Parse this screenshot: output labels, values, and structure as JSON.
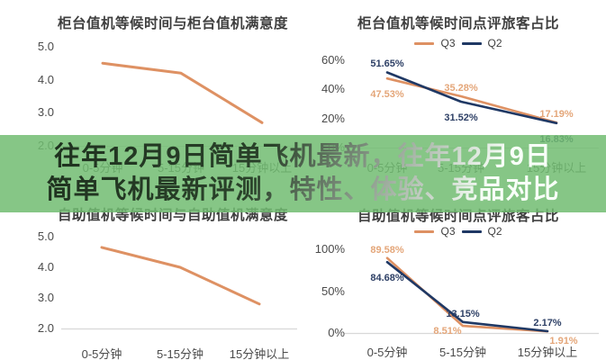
{
  "banner": {
    "lines": [
      "往年12月9日简单飞机最新，往年12月9日",
      "简单飞机最新评测，特性、体验、竞品对比"
    ],
    "overlay_color": "#71bc71",
    "text_dark_color": "#243624",
    "text_light_color": "#f8fff8"
  },
  "colors": {
    "background": "#ffffff",
    "q3_orange": "#de9163",
    "q2_navy": "#1f3864",
    "orange_label": "#e4a679",
    "navy_label": "#2e4066",
    "title_text": "#3f3f3f",
    "axis_text": "#4a4a4a",
    "baseline": "#d8d8d8"
  },
  "chart_data": [
    {
      "type": "line",
      "title": "柜台值机等候时间与柜台值机满意度",
      "categories": [
        "0-5分钟",
        "5-15分钟",
        "15分钟以上"
      ],
      "yticks": [
        "5.0",
        "4.0",
        "3.0",
        "2.0"
      ],
      "ylim": [
        2.0,
        5.0
      ],
      "grid": false,
      "legend_position": "none",
      "series": [
        {
          "color": "#de9163",
          "values": [
            4.5,
            4.2,
            2.7
          ],
          "data_labels": false
        }
      ]
    },
    {
      "type": "line",
      "title": "柜台值机等候时间点评旅客占比",
      "categories": [
        "0-5分钟",
        "5-15分钟",
        "15分钟以上"
      ],
      "yticks": [
        "60%",
        "40%",
        "20%",
        "0%"
      ],
      "ylim": [
        0,
        60
      ],
      "grid": false,
      "legend_position": "top",
      "series": [
        {
          "name": "Q3",
          "color": "#de9163",
          "label_color": "#e4a679",
          "values": [
            47.53,
            35.28,
            17.19
          ],
          "data_labels": true
        },
        {
          "name": "Q2",
          "color": "#1f3864",
          "label_color": "#2e4066",
          "values": [
            51.65,
            31.52,
            16.83
          ],
          "data_labels": true
        }
      ]
    },
    {
      "type": "line",
      "title": "自助值机等候时间与自助值机满意度",
      "categories": [
        "0-5分钟",
        "5-15分钟",
        "15分钟以上"
      ],
      "yticks": [
        "5.0",
        "4.0",
        "3.0",
        "2.0"
      ],
      "ylim": [
        2.0,
        5.0
      ],
      "grid": false,
      "legend_position": "none",
      "series": [
        {
          "color": "#de9163",
          "values": [
            4.65,
            4.0,
            2.8
          ],
          "data_labels": false
        }
      ]
    },
    {
      "type": "line",
      "title": "自助值机等候时间点评旅客占比",
      "categories": [
        "0-5分钟",
        "5-15分钟",
        "15分钟以上"
      ],
      "yticks": [
        "100%",
        "50%",
        "0%"
      ],
      "ylim": [
        0,
        100
      ],
      "grid": false,
      "legend_position": "top",
      "series": [
        {
          "name": "Q3",
          "color": "#de9163",
          "label_color": "#e4a679",
          "values": [
            89.58,
            8.51,
            1.91
          ],
          "data_labels": true
        },
        {
          "name": "Q2",
          "color": "#1f3864",
          "label_color": "#2e4066",
          "values": [
            84.68,
            13.15,
            2.17
          ],
          "data_labels": true
        }
      ]
    }
  ]
}
